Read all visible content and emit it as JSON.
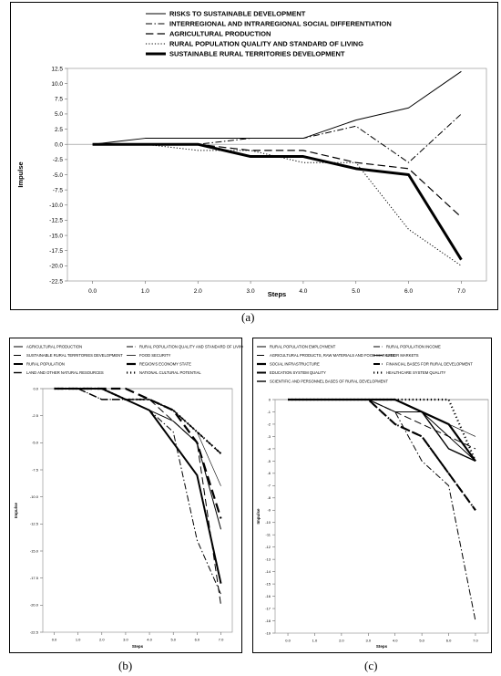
{
  "captions": {
    "a": "(a)",
    "b": "(b)",
    "c": "(c)"
  },
  "chart_data": [
    {
      "type": "line",
      "title": "",
      "xlabel": "Steps",
      "ylabel": "Impulse",
      "x": [
        0,
        1,
        2,
        3,
        4,
        5,
        6,
        7
      ],
      "x_tick_labels": [
        "0.0",
        "1.0",
        "2.0",
        "3.0",
        "4.0",
        "5.0",
        "6.0",
        "7.0"
      ],
      "ylim": [
        -22.5,
        12.5
      ],
      "y_ticks": [
        12.5,
        10,
        7.5,
        5,
        2.5,
        0,
        -2.5,
        -5,
        -7.5,
        -10,
        -12.5,
        -15,
        -17.5,
        -20,
        -22.5
      ],
      "y_tick_labels": [
        "12.5",
        "10.0",
        "7.5",
        "5.0",
        "2.5",
        "0.0",
        "-2.5",
        "-5.0",
        "-7.5",
        "-10.0",
        "-12.5",
        "-15.0",
        "-17.5",
        "-20.0",
        "-22.5"
      ],
      "legend_position": "top",
      "series": [
        {
          "name": "RISKS TO SUSTAINABLE DEVELOPMENT",
          "style": "solid",
          "width": 1,
          "values": [
            0,
            1,
            1,
            1,
            1,
            4,
            6,
            12
          ]
        },
        {
          "name": "INTERREGIONAL AND INTRAREGIONAL SOCIAL DIFFERENTIATION",
          "style": "dashdot",
          "width": 1,
          "values": [
            0,
            0,
            0,
            1,
            1,
            3,
            -3,
            5
          ]
        },
        {
          "name": "AGRICULTURAL PRODUCTION",
          "style": "dash",
          "width": 1.2,
          "values": [
            0,
            0,
            0,
            -1,
            -1,
            -3,
            -4,
            -12
          ]
        },
        {
          "name": "RURAL POPULATION QUALITY AND STANDARD OF LIVING",
          "style": "dot",
          "width": 1,
          "values": [
            0,
            0,
            -1,
            -1,
            -3,
            -3,
            -14,
            -20
          ]
        },
        {
          "name": "SUSTAINABLE RURAL TERRITORIES DEVELOPMENT",
          "style": "solid",
          "width": 3,
          "values": [
            0,
            0,
            0,
            -2,
            -2,
            -4,
            -5,
            -19
          ]
        }
      ]
    },
    {
      "type": "line",
      "title": "",
      "xlabel": "Steps",
      "ylabel": "Impulse",
      "x": [
        0,
        1,
        2,
        3,
        4,
        5,
        6,
        7
      ],
      "x_tick_labels": [
        "0.0",
        "1.0",
        "2.0",
        "3.0",
        "4.0",
        "5.0",
        "6.0",
        "7.0"
      ],
      "ylim": [
        -22.5,
        0
      ],
      "y_ticks": [
        0,
        -2.5,
        -5,
        -7.5,
        -10,
        -12.5,
        -15,
        -17.5,
        -20,
        -22.5
      ],
      "y_tick_labels": [
        "0.0",
        "-2.5",
        "-5.0",
        "-7.5",
        "-10.0",
        "-12.5",
        "-15.0",
        "-17.5",
        "-20.0",
        "-22.5"
      ],
      "legend_position": "top",
      "series": [
        {
          "name": "AGRICULTURAL PRODUCTION",
          "style": "solid",
          "width": 1,
          "values": [
            0,
            0,
            0,
            -1,
            -2,
            -3,
            -5,
            -13
          ]
        },
        {
          "name": "RURAL POPULATION QUALITY AND STANDARD OF LIVING",
          "style": "dashdot",
          "width": 1,
          "values": [
            0,
            0,
            -1,
            -1,
            -2,
            -4,
            -14,
            -19
          ]
        },
        {
          "name": "SUSTAINABLE RURAL TERRITORIES DEVELOPMENT",
          "style": "dash",
          "width": 1,
          "values": [
            0,
            0,
            0,
            -1,
            -1,
            -3,
            -5,
            -20
          ]
        },
        {
          "name": "FOOD SECURITY",
          "style": "solid",
          "width": 0.6,
          "values": [
            0,
            0,
            0,
            -1,
            -1,
            -2,
            -4,
            -9
          ]
        },
        {
          "name": "RURAL POPULATION",
          "style": "solid",
          "width": 2,
          "values": [
            0,
            0,
            0,
            -1,
            -2,
            -5,
            -8,
            -18
          ]
        },
        {
          "name": "REGION'S ECONOMY STATE",
          "style": "dash",
          "width": 2.2,
          "values": [
            0,
            0,
            0,
            0,
            -1,
            -2,
            -5,
            -12
          ]
        },
        {
          "name": "LAND AND OTHER NATURAL RESOURCES",
          "style": "dash",
          "width": 1.4,
          "values": [
            0,
            0,
            -1,
            -1,
            -1,
            -2,
            -4,
            -6
          ]
        },
        {
          "name": "NATIONAL CULTURAL POTENTIAL",
          "style": "dot",
          "width": 2.2,
          "values": [
            0,
            0,
            0,
            -1,
            -1,
            -2,
            -4,
            -6
          ]
        }
      ]
    },
    {
      "type": "line",
      "title": "",
      "xlabel": "Steps",
      "ylabel": "Impulse",
      "x": [
        0,
        1,
        2,
        3,
        4,
        5,
        6,
        7
      ],
      "x_tick_labels": [
        "0.0",
        "1.0",
        "2.0",
        "3.0",
        "4.0",
        "5.0",
        "6.0",
        "7.0"
      ],
      "ylim": [
        -19,
        0
      ],
      "y_ticks": [
        0,
        -1,
        -2,
        -3,
        -4,
        -5,
        -6,
        -7,
        -8,
        -9,
        -10,
        -11,
        -12,
        -13,
        -14,
        -15,
        -16,
        -17,
        -18,
        -19
      ],
      "y_tick_labels": [
        "0",
        "-1",
        "-2",
        "-3",
        "-4",
        "-5",
        "-6",
        "-7",
        "-8",
        "-9",
        "-10",
        "-11",
        "-12",
        "-13",
        "-14",
        "-15",
        "-16",
        "-17",
        "-18",
        "-19"
      ],
      "legend_position": "top",
      "series": [
        {
          "name": "RURAL POPULATION EMPLOYMENT",
          "style": "solid",
          "width": 1,
          "values": [
            0,
            0,
            0,
            0,
            -1,
            -1,
            -3,
            -5
          ]
        },
        {
          "name": "RURAL POPULATION INCOME",
          "style": "dashdot",
          "width": 1,
          "values": [
            0,
            0,
            0,
            0,
            -1,
            -5,
            -7,
            -18
          ]
        },
        {
          "name": "AGRICULTURAL PRODUCTS, RAW MATERIALS AND FOOD MARKETS",
          "style": "dash",
          "width": 1,
          "values": [
            0,
            0,
            0,
            0,
            -1,
            -2,
            -3,
            -4
          ]
        },
        {
          "name": "LABOR MARKETS",
          "style": "solid",
          "width": 0.6,
          "values": [
            0,
            0,
            0,
            0,
            0,
            -1,
            -2,
            -3
          ]
        },
        {
          "name": "SOCIAL INFRASTRUCTURE",
          "style": "solid",
          "width": 2.2,
          "values": [
            0,
            0,
            0,
            0,
            0,
            -1,
            -2,
            -5
          ]
        },
        {
          "name": "FINANCIAL BASES FOR RURAL DEVELOPMENT",
          "style": "dashdot",
          "width": 2,
          "values": [
            0,
            0,
            0,
            0,
            -2,
            -3,
            -6,
            -9
          ]
        },
        {
          "name": "EDUCATION SYSTEM QUALITY",
          "style": "dash",
          "width": 2,
          "values": [
            0,
            0,
            0,
            0,
            -2,
            -3,
            -6,
            -9
          ]
        },
        {
          "name": "HEALTHCARE SYSTEM QUALITY",
          "style": "dot",
          "width": 2.2,
          "values": [
            0,
            0,
            0,
            0,
            0,
            0,
            0,
            -5
          ]
        },
        {
          "name": "SCIENTIFIC AND PERSONNEL BASES OF RURAL DEVELOPMENT",
          "style": "solid",
          "width": 1.4,
          "values": [
            0,
            0,
            0,
            0,
            0,
            -1,
            -4,
            -5
          ]
        }
      ]
    }
  ]
}
